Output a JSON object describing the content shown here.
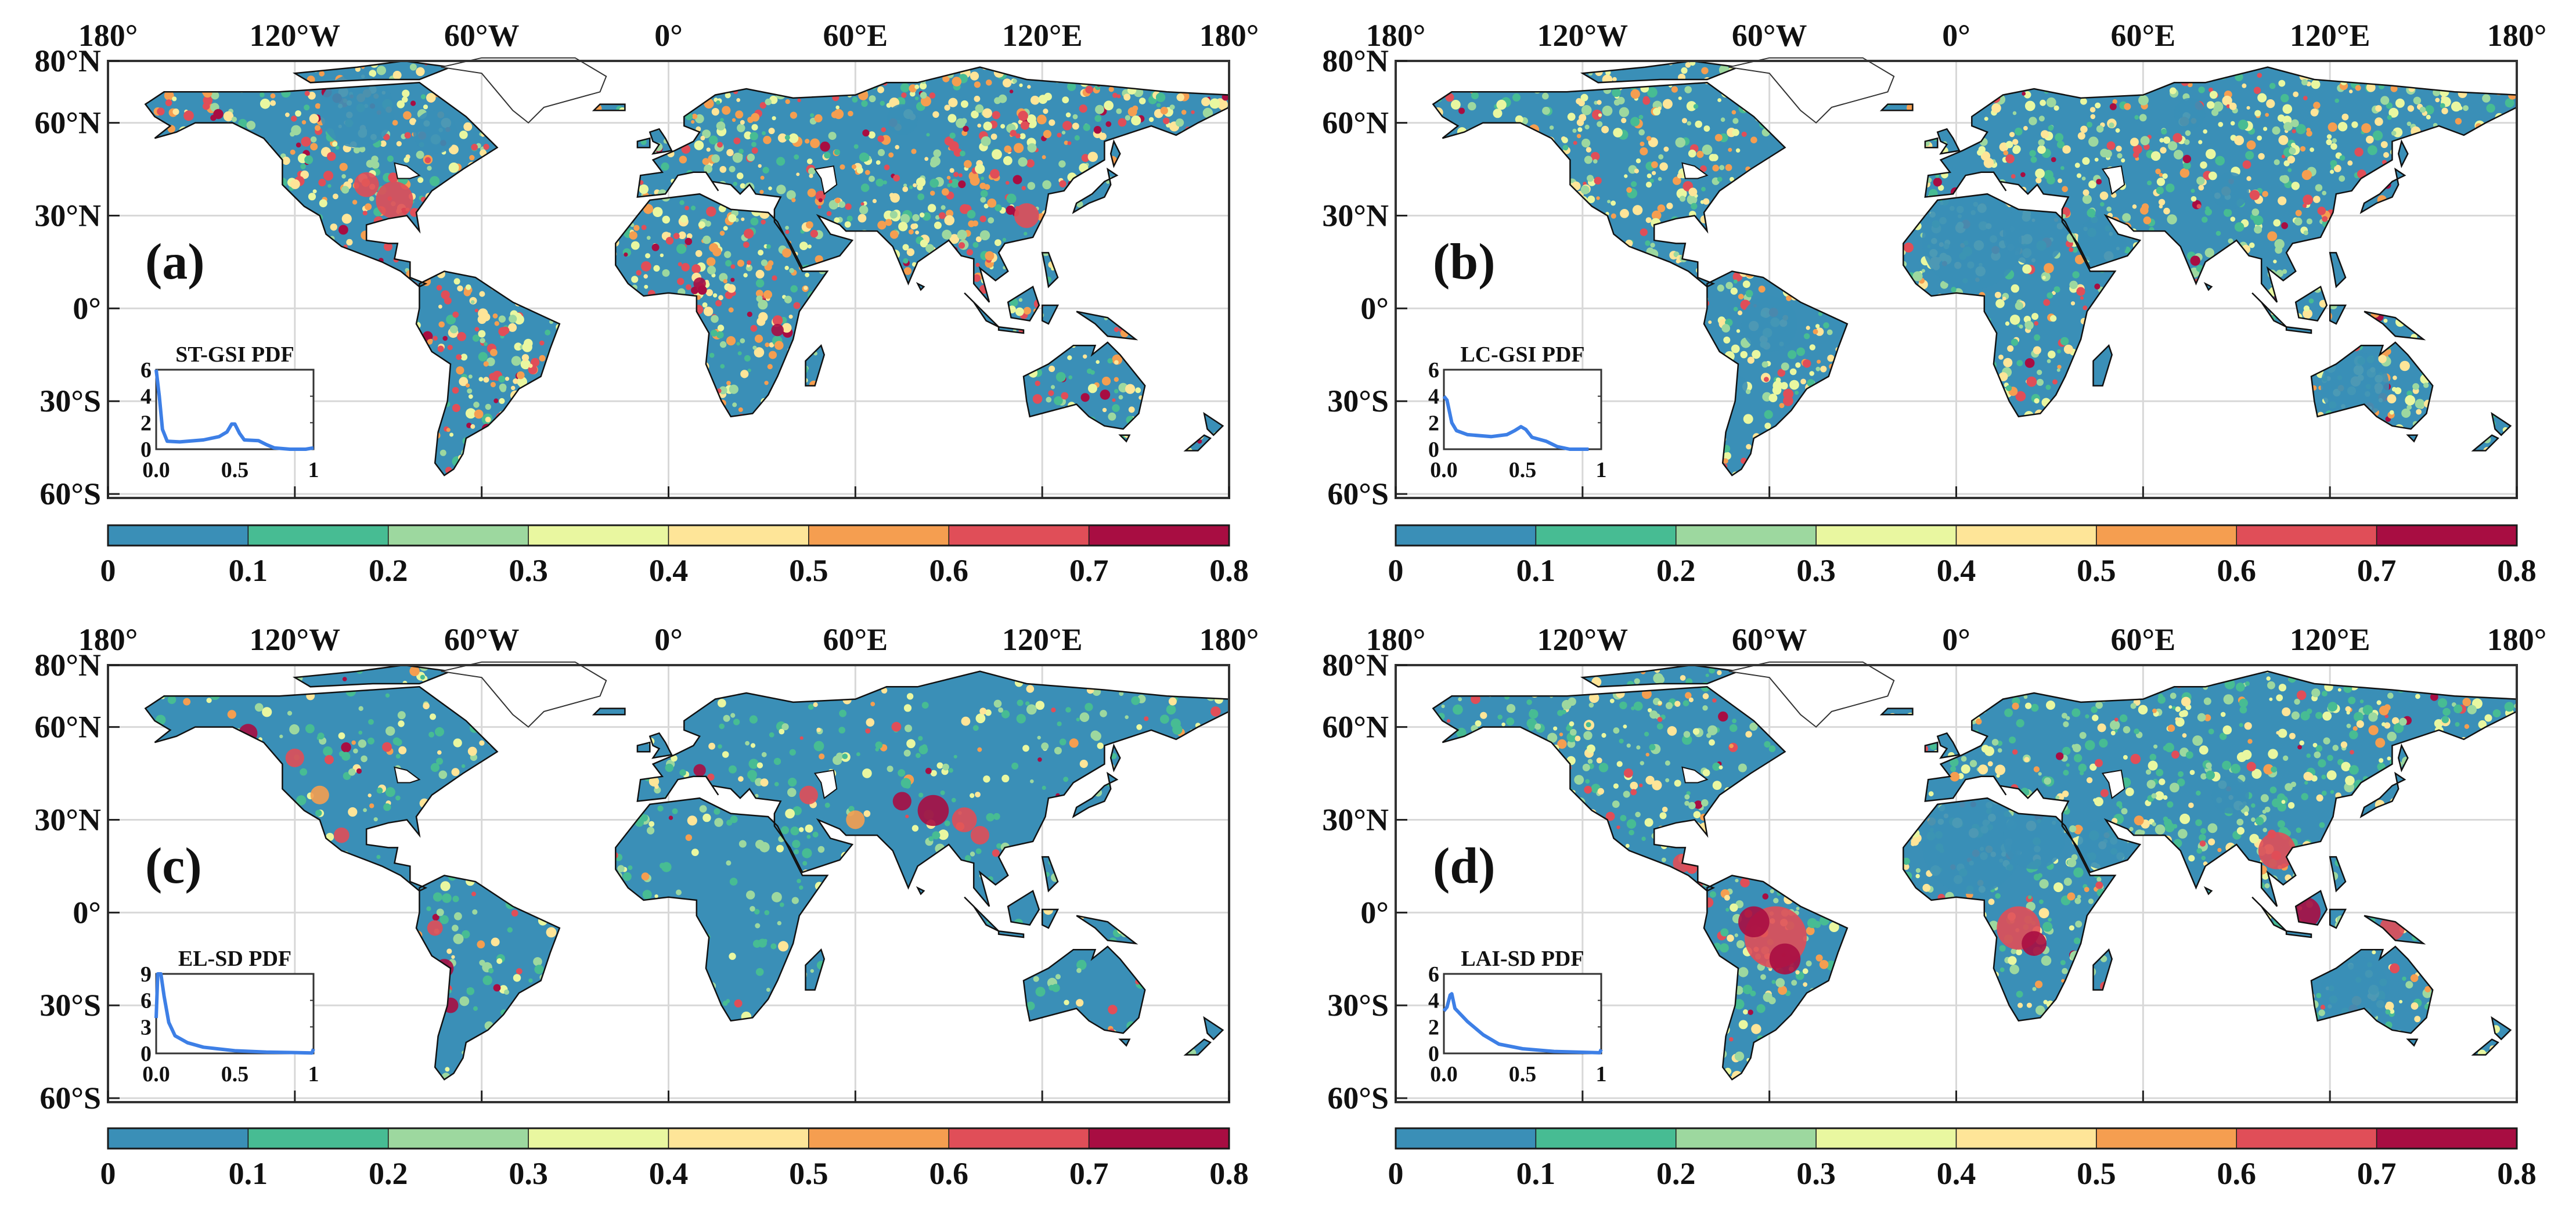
{
  "axes": {
    "lon_labels": [
      "180°",
      "120°W",
      "60°W",
      "0°",
      "60°E",
      "120°E",
      "180°"
    ],
    "lat_labels": [
      "80°N",
      "60°N",
      "30°N",
      "0°",
      "30°S",
      "60°S"
    ],
    "lat_values": [
      80,
      60,
      30,
      0,
      -30,
      -60
    ],
    "lon_values": [
      -180,
      -120,
      -60,
      0,
      60,
      120,
      180
    ]
  },
  "colorbar": {
    "ticks": [
      "0",
      "0.1",
      "0.2",
      "0.3",
      "0.4",
      "0.5",
      "0.6",
      "0.7",
      "0.8"
    ],
    "range": [
      0,
      0.8
    ],
    "colors": [
      "#3a8fb7",
      "#47bc93",
      "#9dd89f",
      "#e9f7a0",
      "#fee598",
      "#f59e50",
      "#e04e58",
      "#a80d42"
    ]
  },
  "panels": [
    {
      "letter": "(a)",
      "inset": {
        "title": "ST-GSI PDF",
        "yticks": [
          "0",
          "2",
          "4",
          "6"
        ],
        "ymax": 6,
        "xticks": [
          "0.0",
          "0.5",
          "1"
        ],
        "curve": [
          [
            0,
            6
          ],
          [
            0.02,
            4
          ],
          [
            0.04,
            1.5
          ],
          [
            0.07,
            0.6
          ],
          [
            0.15,
            0.55
          ],
          [
            0.3,
            0.7
          ],
          [
            0.4,
            0.95
          ],
          [
            0.45,
            1.3
          ],
          [
            0.48,
            1.9
          ],
          [
            0.5,
            1.9
          ],
          [
            0.53,
            1.2
          ],
          [
            0.56,
            0.7
          ],
          [
            0.65,
            0.65
          ],
          [
            0.7,
            0.35
          ],
          [
            0.75,
            0.1
          ],
          [
            0.85,
            0
          ],
          [
            0.95,
            0
          ],
          [
            1,
            0.1
          ]
        ]
      }
    },
    {
      "letter": "(b)",
      "inset": {
        "title": "LC-GSI PDF",
        "yticks": [
          "0",
          "2",
          "4",
          "6"
        ],
        "ymax": 6,
        "xticks": [
          "0.0",
          "0.5",
          "1"
        ],
        "curve": [
          [
            0,
            4
          ],
          [
            0.02,
            3.7
          ],
          [
            0.05,
            2
          ],
          [
            0.08,
            1.4
          ],
          [
            0.15,
            1.1
          ],
          [
            0.3,
            0.95
          ],
          [
            0.4,
            1.1
          ],
          [
            0.45,
            1.4
          ],
          [
            0.49,
            1.7
          ],
          [
            0.52,
            1.5
          ],
          [
            0.56,
            0.9
          ],
          [
            0.65,
            0.6
          ],
          [
            0.72,
            0.2
          ],
          [
            0.8,
            0
          ],
          [
            0.92,
            0
          ]
        ]
      }
    },
    {
      "letter": "(c)",
      "inset": {
        "title": "EL-SD PDF",
        "yticks": [
          "0",
          "3",
          "6",
          "9"
        ],
        "ymax": 9,
        "xticks": [
          "0.0",
          "0.5",
          "1"
        ],
        "curve": [
          [
            0,
            4
          ],
          [
            0.01,
            9
          ],
          [
            0.03,
            9
          ],
          [
            0.05,
            6.5
          ],
          [
            0.08,
            3.5
          ],
          [
            0.12,
            2
          ],
          [
            0.2,
            1.2
          ],
          [
            0.3,
            0.7
          ],
          [
            0.5,
            0.3
          ],
          [
            0.7,
            0.15
          ],
          [
            0.99,
            0.05
          ],
          [
            1,
            0.5
          ]
        ]
      }
    },
    {
      "letter": "(d)",
      "inset": {
        "title": "LAI-SD PDF",
        "yticks": [
          "0",
          "2",
          "4",
          "6"
        ],
        "ymax": 6,
        "xticks": [
          "0.0",
          "0.5",
          "1"
        ],
        "curve": [
          [
            0,
            3.2
          ],
          [
            0.02,
            3.5
          ],
          [
            0.04,
            4.4
          ],
          [
            0.05,
            4.5
          ],
          [
            0.07,
            3.4
          ],
          [
            0.15,
            2.4
          ],
          [
            0.25,
            1.4
          ],
          [
            0.35,
            0.7
          ],
          [
            0.5,
            0.35
          ],
          [
            0.7,
            0.15
          ],
          [
            0.99,
            0.05
          ],
          [
            1,
            0.3
          ]
        ]
      }
    }
  ],
  "inset_line_color": "#3d7fe6"
}
